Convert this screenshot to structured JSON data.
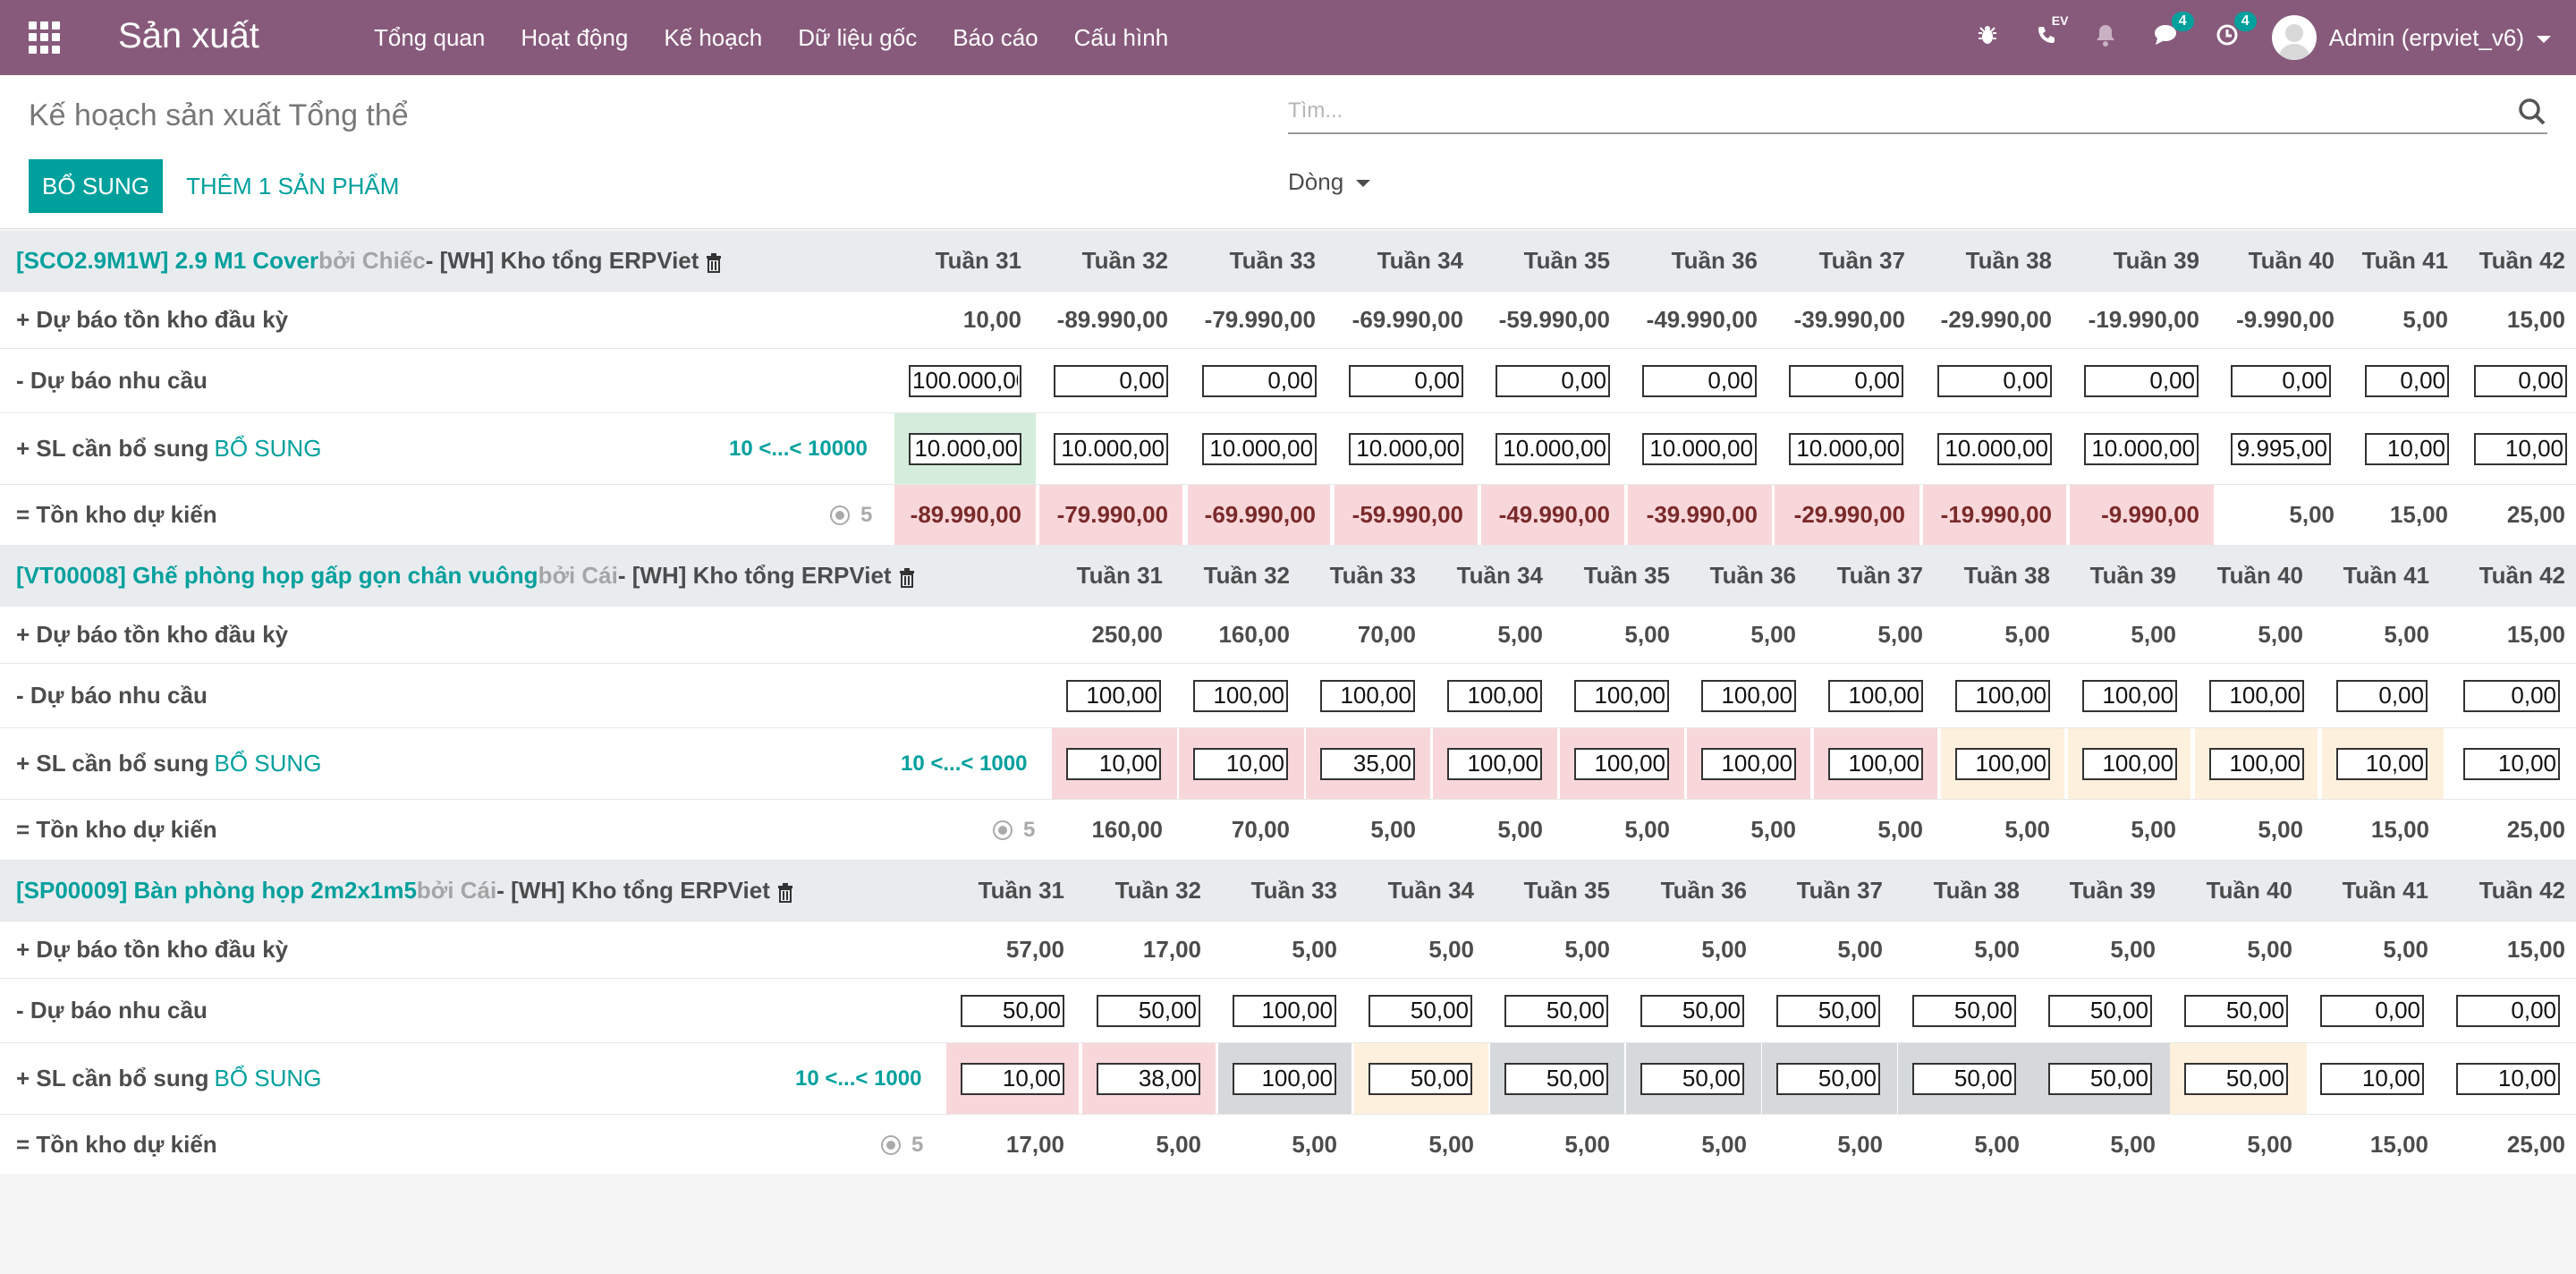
{
  "app": {
    "title": "Sản xuất"
  },
  "menu": [
    "Tổng quan",
    "Hoạt động",
    "Kế hoạch",
    "Dữ liệu gốc",
    "Báo cáo",
    "Cấu hình"
  ],
  "systray": {
    "ev_label": "EV",
    "messages_count": "4",
    "activities_count": "4",
    "user": "Admin (erpviet_v6)"
  },
  "page": {
    "title": "Kế hoạch sản xuất Tổng thể",
    "search_placeholder": "Tìm...",
    "replenish_btn": "BỔ SUNG",
    "add_product_btn": "THÊM 1 SẢN PHẨM",
    "group_by": "Dòng"
  },
  "labels": {
    "start": "+ Dự báo tồn kho đầu kỳ",
    "demand": "- Dự báo nhu cầu",
    "replenish": "+ SL cần bổ sung",
    "replenish_link": "BỔ SUNG",
    "forecast": "= Tồn kho dự kiến"
  },
  "weeks": [
    "Tuần 31",
    "Tuần 32",
    "Tuần 33",
    "Tuần 34",
    "Tuần 35",
    "Tuần 36",
    "Tuần 37",
    "Tuần 38",
    "Tuần 39",
    "Tuần 40",
    "Tuần 41",
    "Tuần 42"
  ],
  "blocks": [
    {
      "code": "[SCO2.9M1W] 2.9 M1 Cover",
      "uom": "bởi Chiếc",
      "warehouse": "- [WH] Kho tổng ERPViet",
      "range": "10 <...< 10000",
      "safety": "5",
      "start": [
        "10,00",
        "-89.990,00",
        "-79.990,00",
        "-69.990,00",
        "-59.990,00",
        "-49.990,00",
        "-39.990,00",
        "-29.990,00",
        "-19.990,00",
        "-9.990,00",
        "5,00",
        "15,00"
      ],
      "demand": [
        "100.000,00",
        "0,00",
        "0,00",
        "0,00",
        "0,00",
        "0,00",
        "0,00",
        "0,00",
        "0,00",
        "0,00",
        "0,00",
        "0,00"
      ],
      "replenish": [
        "10.000,00",
        "10.000,00",
        "10.000,00",
        "10.000,00",
        "10.000,00",
        "10.000,00",
        "10.000,00",
        "10.000,00",
        "10.000,00",
        "9.995,00",
        "10,00",
        "10,00"
      ],
      "replenish_state": [
        "green",
        "",
        "",
        "",
        "",
        "",
        "",
        "",
        "",
        "",
        "",
        ""
      ],
      "forecast": [
        "-89.990,00",
        "-79.990,00",
        "-69.990,00",
        "-59.990,00",
        "-49.990,00",
        "-39.990,00",
        "-29.990,00",
        "-19.990,00",
        "-9.990,00",
        "5,00",
        "15,00",
        "25,00"
      ],
      "forecast_state": [
        "red",
        "red",
        "red",
        "red",
        "red",
        "red",
        "red",
        "red",
        "red",
        "",
        "",
        ""
      ]
    },
    {
      "code": "[VT00008] Ghế phòng họp gấp gọn chân vuông",
      "uom": "bởi Cái",
      "warehouse": "- [WH] Kho tổng ERPViet",
      "range": "10 <...< 1000",
      "safety": "5",
      "start": [
        "250,00",
        "160,00",
        "70,00",
        "5,00",
        "5,00",
        "5,00",
        "5,00",
        "5,00",
        "5,00",
        "5,00",
        "5,00",
        "15,00"
      ],
      "demand": [
        "100,00",
        "100,00",
        "100,00",
        "100,00",
        "100,00",
        "100,00",
        "100,00",
        "100,00",
        "100,00",
        "100,00",
        "0,00",
        "0,00"
      ],
      "replenish": [
        "10,00",
        "10,00",
        "35,00",
        "100,00",
        "100,00",
        "100,00",
        "100,00",
        "100,00",
        "100,00",
        "100,00",
        "10,00",
        "10,00"
      ],
      "replenish_state": [
        "red",
        "red",
        "red",
        "red",
        "red",
        "red",
        "red",
        "orange",
        "orange",
        "orange",
        "orange",
        ""
      ],
      "forecast": [
        "160,00",
        "70,00",
        "5,00",
        "5,00",
        "5,00",
        "5,00",
        "5,00",
        "5,00",
        "5,00",
        "5,00",
        "15,00",
        "25,00"
      ],
      "forecast_state": [
        "",
        "",
        "",
        "",
        "",
        "",
        "",
        "",
        "",
        "",
        "",
        ""
      ]
    },
    {
      "code": "[SP00009] Bàn phòng họp 2m2x1m5",
      "uom": "bởi Cái",
      "warehouse": "- [WH] Kho tổng ERPViet",
      "range": "10 <...< 1000",
      "safety": "5",
      "start": [
        "57,00",
        "17,00",
        "5,00",
        "5,00",
        "5,00",
        "5,00",
        "5,00",
        "5,00",
        "5,00",
        "5,00",
        "5,00",
        "15,00"
      ],
      "demand": [
        "50,00",
        "50,00",
        "100,00",
        "50,00",
        "50,00",
        "50,00",
        "50,00",
        "50,00",
        "50,00",
        "50,00",
        "0,00",
        "0,00"
      ],
      "replenish": [
        "10,00",
        "38,00",
        "100,00",
        "50,00",
        "50,00",
        "50,00",
        "50,00",
        "50,00",
        "50,00",
        "50,00",
        "10,00",
        "10,00"
      ],
      "replenish_state": [
        "red",
        "red",
        "gray",
        "orange",
        "gray",
        "gray",
        "gray",
        "gray",
        "gray",
        "orange",
        "",
        ""
      ],
      "forecast": [
        "17,00",
        "5,00",
        "5,00",
        "5,00",
        "5,00",
        "5,00",
        "5,00",
        "5,00",
        "5,00",
        "5,00",
        "15,00",
        "25,00"
      ],
      "forecast_state": [
        "",
        "",
        "",
        "",
        "",
        "",
        "",
        "",
        "",
        "",
        "",
        ""
      ]
    }
  ],
  "colors": {
    "navbar": "#875a7b",
    "primary": "#00a09d",
    "green": "#d4edda",
    "red": "#f8d7da",
    "orange": "#fdf0dc",
    "gray": "#d5d9dc"
  }
}
